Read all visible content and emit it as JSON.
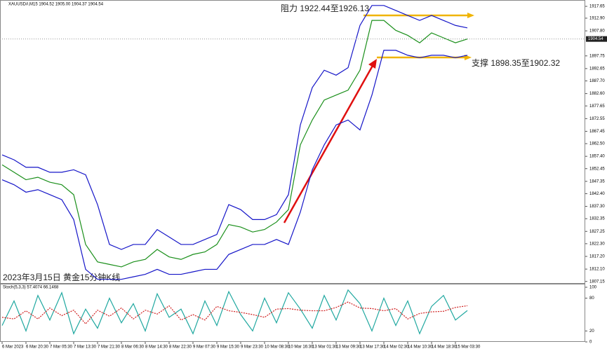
{
  "chart_data": [
    {
      "type": "line",
      "title": "XAUUSD#,M15 1904.52 1905.00 1904.37 1904.54",
      "categories": [
        "6 Mar 2023",
        null,
        "6 Mar 20:30",
        null,
        "7 Mar 05:30",
        null,
        "7 Mar 13:30",
        null,
        "7 Mar 21:30",
        null,
        "8 Mar 06:30",
        null,
        "8 Mar 14:30",
        null,
        "8 Mar 22:30",
        null,
        "9 Mar 07:30",
        null,
        "9 Mar 15:30",
        null,
        "9 Mar 23:30",
        null,
        "10 Mar 08:30",
        null,
        "10 Mar 16:30",
        null,
        "13 Mar 01:30",
        null,
        "13 Mar 09:30",
        null,
        "13 Mar 17:30",
        null,
        "14 Mar 02:30",
        null,
        "14 Mar 10:30",
        null,
        "14 Mar 18:30",
        null,
        "15 Mar 03:30",
        null
      ],
      "series": [
        {
          "color": "#1a8f1a",
          "values": [
            1854,
            1851,
            1848,
            1849,
            1847,
            1846,
            1842,
            1822,
            1815,
            1814,
            1813,
            1815,
            1816,
            1820,
            1817,
            1816,
            1818,
            1819,
            1822,
            1830,
            1829,
            1827,
            1828,
            1831,
            1836,
            1862,
            1872,
            1880,
            1882,
            1884,
            1892,
            1912,
            1912,
            1908,
            1906,
            1903,
            1907,
            1905,
            1903,
            1904.54
          ]
        },
        {
          "color": "#1515c8",
          "values": [
            1858,
            1856,
            1853,
            1853,
            1851,
            1851,
            1852,
            1850,
            1838,
            1822,
            1820,
            1822,
            1822,
            1828,
            1825,
            1822,
            1822,
            1824,
            1826,
            1838,
            1836,
            1832,
            1832,
            1834,
            1842,
            1870,
            1885,
            1892,
            1890,
            1893,
            1910,
            1918,
            1918,
            1916,
            1914,
            1912,
            1914,
            1912,
            1910,
            1909
          ]
        },
        {
          "color": "#1515c8",
          "values": [
            1848,
            1846,
            1843,
            1844,
            1842,
            1840,
            1832,
            1812,
            1808,
            1808,
            1808,
            1809,
            1810,
            1812,
            1810,
            1810,
            1811,
            1812,
            1812,
            1818,
            1820,
            1822,
            1822,
            1824,
            1822,
            1835,
            1852,
            1862,
            1870,
            1872,
            1868,
            1882,
            1900,
            1900,
            1898,
            1897,
            1898,
            1898,
            1897,
            1898
          ]
        }
      ],
      "ylim": [
        1806.5,
        1920.2
      ],
      "yticks": [
        {
          "value": 1917.65,
          "label": "1917.65"
        },
        {
          "value": 1912.9,
          "label": "1912.90"
        },
        {
          "value": 1907.8,
          "label": "1907.80"
        },
        {
          "value": 1897.75,
          "label": "1897.75"
        },
        {
          "value": 1892.65,
          "label": "1892.65"
        },
        {
          "value": 1887.7,
          "label": "1887.70"
        },
        {
          "value": 1882.6,
          "label": "1882.60"
        },
        {
          "value": 1877.65,
          "label": "1877.65"
        },
        {
          "value": 1872.55,
          "label": "1872.55"
        },
        {
          "value": 1867.45,
          "label": "1867.45"
        },
        {
          "value": 1862.5,
          "label": "1862.50"
        },
        {
          "value": 1857.4,
          "label": "1857.40"
        },
        {
          "value": 1852.45,
          "label": "1852.45"
        },
        {
          "value": 1847.35,
          "label": "1847.35"
        },
        {
          "value": 1842.4,
          "label": "1842.40"
        },
        {
          "value": 1837.3,
          "label": "1837.30"
        },
        {
          "value": 1832.35,
          "label": "1832.35"
        },
        {
          "value": 1827.25,
          "label": "1827.25"
        },
        {
          "value": 1822.3,
          "label": "1822.30"
        },
        {
          "value": 1817.2,
          "label": "1817.20"
        },
        {
          "value": 1812.1,
          "label": "1812.10"
        },
        {
          "value": 1807.15,
          "label": "1807.15"
        }
      ],
      "current_price": 1904.54,
      "annotations": [
        "阻力 1922.44至1926.13",
        "支撑 1898.35至1902.32",
        "2023年3月15日 黄金15分钟K线"
      ]
    },
    {
      "type": "line",
      "title": "Stoch(5,3,3) 57.4074 66.1468",
      "series": [
        {
          "color": "#20a8a0",
          "values": [
            30,
            75,
            20,
            85,
            40,
            90,
            15,
            60,
            25,
            80,
            35,
            70,
            20,
            88,
            45,
            60,
            15,
            75,
            30,
            92,
            50,
            20,
            80,
            35,
            90,
            60,
            25,
            85,
            40,
            95,
            70,
            20,
            80,
            30,
            75,
            15,
            65,
            85,
            40,
            57.4074
          ],
          "dashed": false
        },
        {
          "color": "#d02020",
          "values": [
            45,
            42,
            57,
            42,
            62,
            48,
            58,
            33,
            58,
            47,
            62,
            42,
            58,
            51,
            66,
            40,
            50,
            40,
            65,
            57,
            54,
            50,
            45,
            60,
            61,
            58,
            57,
            57,
            63,
            73,
            62,
            61,
            57,
            61,
            42,
            52,
            55,
            56,
            63,
            66.1468
          ],
          "dashed": true
        }
      ],
      "ylim": [
        0,
        100
      ],
      "yticks": [
        0,
        20,
        80,
        100
      ]
    }
  ]
}
